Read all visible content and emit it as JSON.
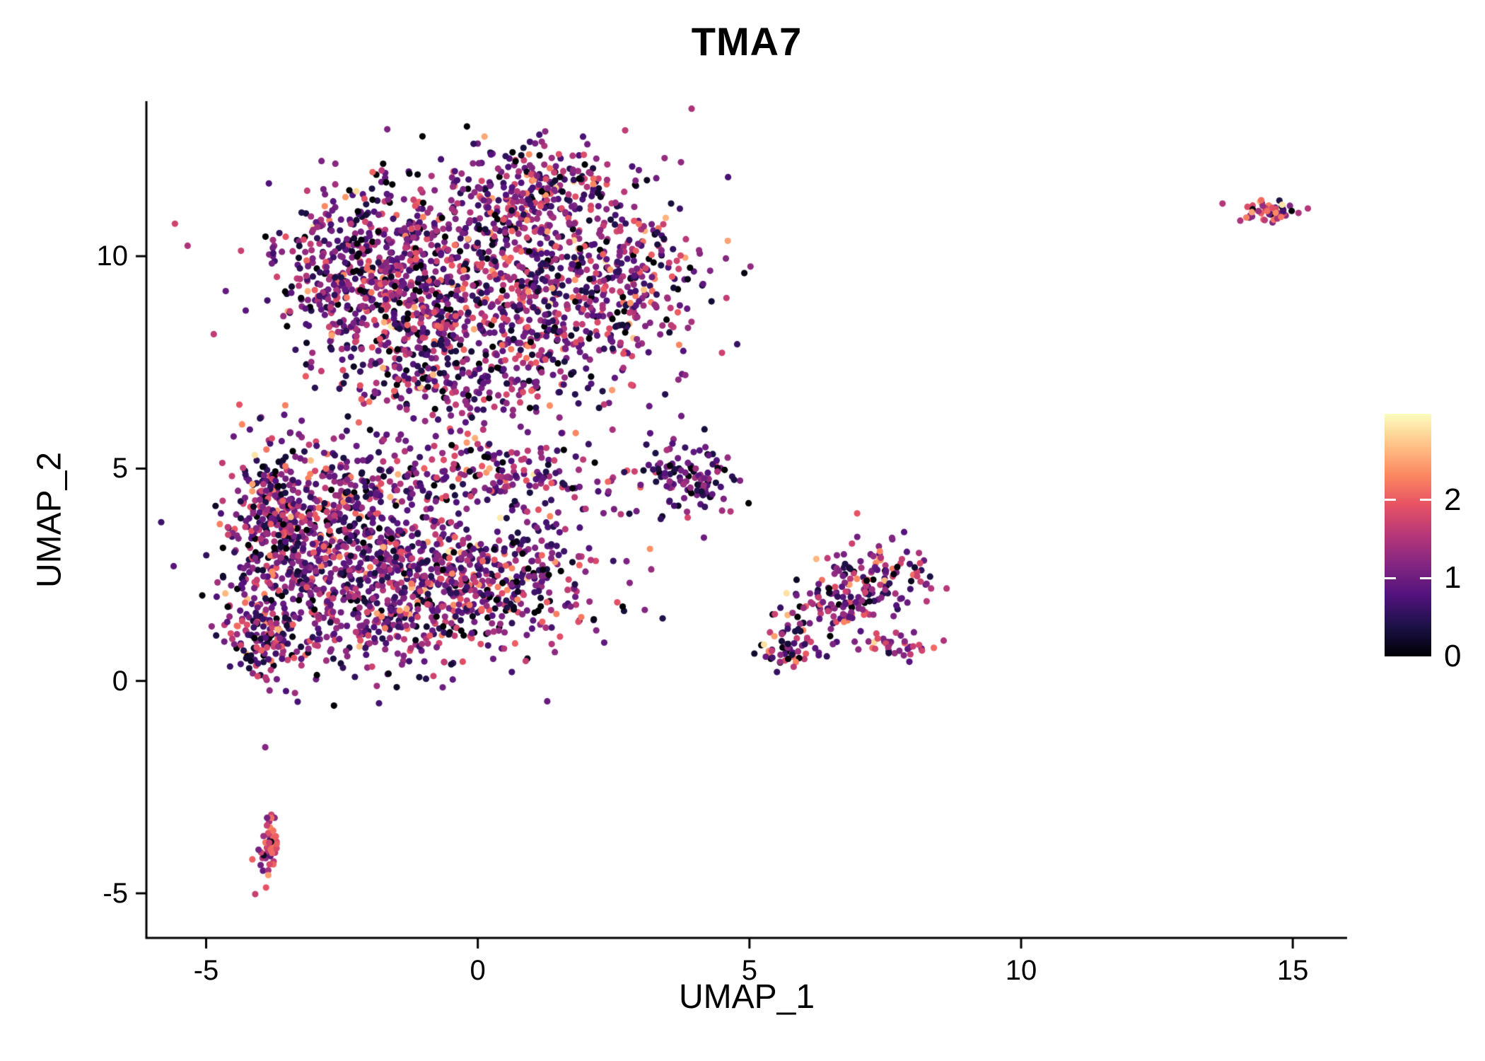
{
  "chart_data": {
    "type": "scatter",
    "title": "TMA7",
    "xlabel": "UMAP_1",
    "ylabel": "UMAP_2",
    "x_ticks": [
      -5,
      0,
      5,
      10,
      15
    ],
    "y_ticks": [
      -5,
      0,
      5,
      10
    ],
    "xlim": [
      -6.1,
      16.0
    ],
    "ylim": [
      -6.05,
      13.65
    ],
    "grid": false,
    "axis_color": "#000000",
    "background_color": "#ffffff",
    "point_radius_px": 4.6,
    "seed": 42,
    "legend": {
      "type": "colorbar",
      "position": "right",
      "ticks": [
        0,
        1,
        2
      ],
      "range": [
        0,
        3.1
      ],
      "colormap": "magma",
      "stops": [
        "#000004",
        "#1d1147",
        "#51127c",
        "#822681",
        "#b73779",
        "#e75263",
        "#fc8961",
        "#fec488",
        "#fcfdbf"
      ]
    },
    "value_default": {
      "mean": 1.05,
      "sd": 0.68
    },
    "value_clip": [
      0,
      2.95
    ],
    "clusters": [
      {
        "name": "top-blob-core",
        "cx": 0.0,
        "cy": 10.2,
        "sx": 1.7,
        "sy": 1.0,
        "n": 600
      },
      {
        "name": "top-blob-left",
        "cx": -1.6,
        "cy": 9.0,
        "sx": 0.9,
        "sy": 1.0,
        "n": 300
      },
      {
        "name": "top-blob-upper-left",
        "cx": -2.7,
        "cy": 9.7,
        "sx": 0.55,
        "sy": 0.75,
        "n": 150
      },
      {
        "name": "top-blob-lower",
        "cx": 0.8,
        "cy": 8.3,
        "sx": 1.4,
        "sy": 0.8,
        "n": 320
      },
      {
        "name": "top-blob-peak",
        "cx": 1.2,
        "cy": 11.6,
        "sx": 0.9,
        "sy": 0.55,
        "n": 180
      },
      {
        "name": "top-blob-right",
        "cx": 2.6,
        "cy": 9.4,
        "sx": 0.7,
        "sy": 0.7,
        "n": 150
      },
      {
        "name": "top-blob-neck",
        "cx": -0.4,
        "cy": 7.0,
        "sx": 1.0,
        "sy": 0.7,
        "n": 180
      },
      {
        "name": "top-blob-sparse-fill",
        "cx": 0.5,
        "cy": 8.8,
        "sx": 2.0,
        "sy": 1.7,
        "n": 160
      },
      {
        "name": "lower-blob-upper",
        "cx": -2.6,
        "cy": 3.9,
        "sx": 1.0,
        "sy": 0.85,
        "n": 420
      },
      {
        "name": "lower-blob-core",
        "cx": -1.6,
        "cy": 2.0,
        "sx": 1.2,
        "sy": 0.85,
        "n": 480
      },
      {
        "name": "lower-blob-right",
        "cx": 0.2,
        "cy": 2.5,
        "sx": 1.2,
        "sy": 0.8,
        "n": 380
      },
      {
        "name": "lower-blob-left-edge",
        "cx": -3.6,
        "cy": 2.2,
        "sx": 0.6,
        "sy": 1.1,
        "n": 220
      },
      {
        "name": "lower-blob-left-col",
        "cx": -3.8,
        "cy": 4.3,
        "sx": 0.35,
        "sy": 0.8,
        "n": 120
      },
      {
        "name": "lower-blob-top-band",
        "cx": 0.4,
        "cy": 4.8,
        "sx": 1.3,
        "sy": 0.45,
        "n": 200
      },
      {
        "name": "lower-blob-bottom-tip",
        "cx": -3.9,
        "cy": 0.9,
        "sx": 0.35,
        "sy": 0.4,
        "n": 90
      },
      {
        "name": "mid-small-cluster",
        "cx": 3.9,
        "cy": 4.8,
        "sx": 0.4,
        "sy": 0.45,
        "n": 110,
        "vmean": 0.8,
        "vsd": 0.5
      },
      {
        "name": "right-cluster-top",
        "cx": 7.3,
        "cy": 2.4,
        "sx": 0.55,
        "sy": 0.5,
        "n": 110
      },
      {
        "name": "right-cluster-mid",
        "cx": 6.3,
        "cy": 1.5,
        "sx": 0.45,
        "sy": 0.4,
        "n": 60
      },
      {
        "name": "right-cluster-link",
        "cx": 6.8,
        "cy": 1.9,
        "sx": 0.35,
        "sy": 0.35,
        "n": 40
      },
      {
        "name": "right-cluster-tail",
        "cx": 5.7,
        "cy": 0.7,
        "sx": 0.3,
        "sy": 0.25,
        "n": 45
      },
      {
        "name": "right-cluster-clump",
        "cx": 7.7,
        "cy": 0.85,
        "sx": 0.35,
        "sy": 0.15,
        "n": 35,
        "vmean": 1.5,
        "vsd": 0.5
      },
      {
        "name": "bottom-left-tiny",
        "cx": -3.85,
        "cy": -3.9,
        "sx": 0.13,
        "sy": 0.42,
        "n": 50,
        "vmean": 1.6,
        "vsd": 0.5
      },
      {
        "name": "top-right-tiny",
        "cx": 14.6,
        "cy": 11.05,
        "sx": 0.35,
        "sy": 0.13,
        "n": 50,
        "vmean": 1.6,
        "vsd": 0.75
      }
    ]
  }
}
